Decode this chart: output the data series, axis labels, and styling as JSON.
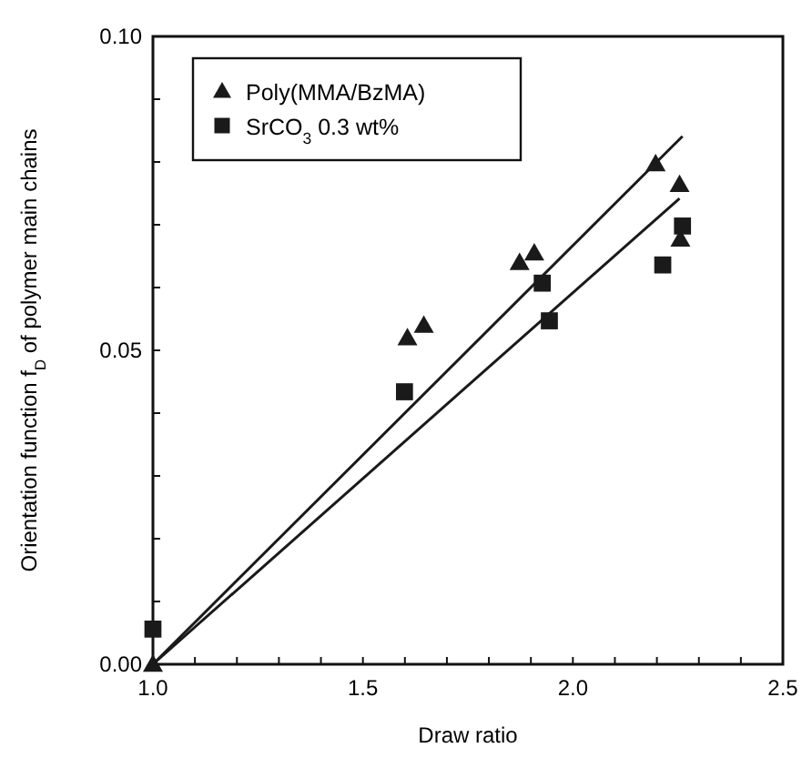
{
  "chart_data": {
    "type": "scatter",
    "xlabel": "Draw ratio",
    "ylabel": "Orientation function f$_{D}$ of polymer main chains",
    "xlim": [
      1.0,
      2.5
    ],
    "ylim": [
      0,
      0.1
    ],
    "xticks": [
      "1.0",
      {
        "value": 1.1,
        "label": null
      },
      {
        "value": 1.2,
        "label": null
      },
      {
        "value": 1.3,
        "label": null
      },
      {
        "value": 1.4,
        "label": null
      },
      {
        "value": 1.5,
        "label": "1.5"
      },
      {
        "value": 1.6,
        "label": null
      },
      {
        "value": 1.7,
        "label": null
      },
      {
        "value": 1.8,
        "label": null
      },
      {
        "value": 1.9,
        "label": null
      },
      {
        "value": 2.0,
        "label": "2.0"
      },
      {
        "value": 2.1,
        "label": null
      },
      {
        "value": 2.2,
        "label": null
      },
      {
        "value": 2.3,
        "label": null
      },
      {
        "value": 2.4,
        "label": null
      },
      {
        "value": 2.5,
        "label": "2.5"
      }
    ],
    "yticks": [
      {
        "value": 0,
        "label": "0.00"
      },
      {
        "value": 0.01,
        "label": null
      },
      {
        "value": 0.02,
        "label": null
      },
      {
        "value": 0.03,
        "label": null
      },
      {
        "value": 0.04,
        "label": null
      },
      {
        "value": 0.05,
        "label": "0.05"
      },
      {
        "value": 0.06,
        "label": null
      },
      {
        "value": 0.07,
        "label": null
      },
      {
        "value": 0.08,
        "label": null
      },
      {
        "value": 0.09,
        "label": null
      },
      {
        "value": 0.1,
        "label": "0.10"
      }
    ],
    "legend": "top left",
    "grid": false,
    "series": [
      {
        "name": "Poly(MMA/BzMA)",
        "color": "#1a1a1a",
        "marker": "triangle",
        "x": [
          1.0,
          1.606,
          1.645,
          1.873,
          1.908,
          2.197,
          2.254,
          2.256
        ],
        "values": [
          0,
          0.052,
          0.054,
          0.064,
          0.0655,
          0.0797,
          0.0764,
          0.0677
        ]
      },
      {
        "name": "SrCO$_{3}$ 0.3 wt%",
        "color": "#1a1a1a",
        "marker": "square",
        "x": [
          1.0,
          1.599,
          1.927,
          1.944,
          2.214,
          2.261
        ],
        "values": [
          0.0056,
          0.0434,
          0.0607,
          0.0547,
          0.0636,
          0.0698
        ]
      },
      {
        "type": "line",
        "color": "#1a1a1a",
        "x": [
          1.0,
          2.261
        ],
        "values": [
          0,
          0.0841
        ]
      },
      {
        "type": "line",
        "color": "#1a1a1a",
        "x": [
          1.0,
          2.254
        ],
        "values": [
          0,
          0.0742
        ]
      }
    ]
  }
}
